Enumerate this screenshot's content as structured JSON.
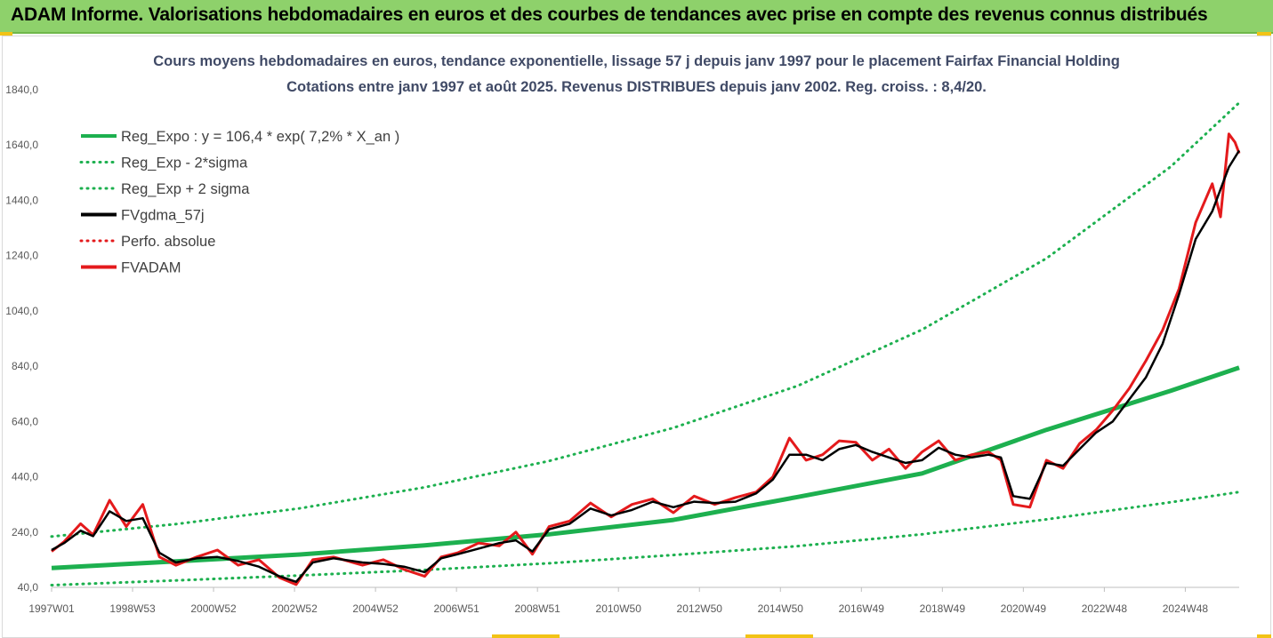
{
  "banner": {
    "title": "ADAM Informe. Valorisations hebdomadaires en euros et des courbes de tendances avec prise en compte des revenus connus distribués"
  },
  "colors": {
    "banner": "#8ed16b",
    "trend": "#1db04f",
    "smooth": "#000000",
    "price": "#e41a1c",
    "perfo": "#e41a1c",
    "title": "#404a66"
  },
  "chart_data": {
    "type": "line",
    "title": "Cours moyens hebdomadaires en euros, tendance exponentielle, lissage 57 j depuis janv 1997  pour le placement Fairfax Financial Holding",
    "subtitle": "Cotations entre janv 1997 et août 2025. Revenus DISTRIBUES depuis janv 2002. Reg. croiss. : 8,4/20.",
    "xlabel": "",
    "ylabel": "",
    "ylim": [
      40,
      1840
    ],
    "yticks": [
      "1840,0",
      "1640,0",
      "1440,0",
      "1240,0",
      "1040,0",
      "840,0",
      "640,0",
      "440,0",
      "240,0",
      "40,0"
    ],
    "x_tick_labels": [
      "1997W01",
      "1998W53",
      "2000W52",
      "2002W52",
      "2004W52",
      "2006W51",
      "2008W51",
      "2010W50",
      "2012W50",
      "2014W50",
      "2016W49",
      "2018W49",
      "2020W49",
      "2022W48",
      "2024W48"
    ],
    "x_range": [
      1997.0,
      2025.65
    ],
    "grid": false,
    "legend_position": "top-left",
    "legend": [
      {
        "label": "Reg_Expo : y = 106,4 * exp( 7,2% *  X_an )",
        "style": "solid",
        "color": "#1db04f"
      },
      {
        "label": "Reg_Exp - 2*sigma",
        "style": "dotted",
        "color": "#1db04f"
      },
      {
        "label": "Reg_Exp + 2 sigma",
        "style": "dotted",
        "color": "#1db04f"
      },
      {
        "label": "FVgdma_57j",
        "style": "solid",
        "color": "#000000"
      },
      {
        "label": "Perfo. absolue",
        "style": "dotted",
        "color": "#e41a1c"
      },
      {
        "label": "FVADAM",
        "style": "solid",
        "color": "#e41a1c"
      }
    ],
    "series": [
      {
        "name": "Reg_Expo : y = 106,4 * exp( 7,2% *  X_an )",
        "x": [
          1997.0,
          2000.0,
          2003.0,
          2006.0,
          2009.0,
          2012.0,
          2015.0,
          2018.0,
          2021.0,
          2024.0,
          2025.65
        ],
        "values": [
          110,
          134,
          159,
          192,
          232,
          284,
          367,
          452,
          610,
          751,
          835
        ]
      },
      {
        "name": "Reg_Exp - 2*sigma",
        "x": [
          1997.0,
          2000.0,
          2003.0,
          2006.0,
          2009.0,
          2012.0,
          2015.0,
          2018.0,
          2021.0,
          2024.0,
          2025.65
        ],
        "values": [
          48,
          65,
          83,
          103,
          127,
          157,
          189,
          232,
          286,
          348,
          385
        ]
      },
      {
        "name": "Reg_Exp + 2 sigma",
        "x": [
          1997.0,
          2000.0,
          2003.0,
          2006.0,
          2009.0,
          2012.0,
          2015.0,
          2018.0,
          2021.0,
          2024.0,
          2025.65
        ],
        "values": [
          224,
          269,
          326,
          402,
          497,
          617,
          769,
          972,
          1230,
          1562,
          1793
        ]
      },
      {
        "name": "FVgdma_57j",
        "x": [
          1997.0,
          1997.3,
          1997.7,
          1998.0,
          1998.4,
          1998.8,
          1999.2,
          1999.6,
          2000.0,
          2000.5,
          2001.0,
          2001.5,
          2002.0,
          2002.5,
          2002.9,
          2003.3,
          2003.8,
          2004.5,
          2005.0,
          2005.5,
          2006.0,
          2006.4,
          2006.8,
          2007.3,
          2007.8,
          2008.2,
          2008.6,
          2009.0,
          2009.5,
          2010.0,
          2010.5,
          2011.0,
          2011.5,
          2012.0,
          2012.5,
          2013.0,
          2013.5,
          2014.0,
          2014.4,
          2014.8,
          2015.2,
          2015.6,
          2016.0,
          2016.4,
          2016.8,
          2017.2,
          2017.6,
          2018.0,
          2018.4,
          2018.8,
          2019.2,
          2019.6,
          2019.9,
          2020.2,
          2020.6,
          2021.0,
          2021.4,
          2021.8,
          2022.2,
          2022.6,
          2023.0,
          2023.4,
          2023.8,
          2024.2,
          2024.6,
          2025.0,
          2025.4,
          2025.65
        ],
        "values": [
          175,
          200,
          245,
          225,
          315,
          280,
          290,
          165,
          130,
          145,
          150,
          135,
          115,
          80,
          60,
          130,
          145,
          130,
          125,
          115,
          95,
          145,
          160,
          180,
          200,
          210,
          170,
          250,
          270,
          325,
          300,
          320,
          350,
          330,
          350,
          345,
          350,
          380,
          430,
          520,
          520,
          500,
          540,
          555,
          530,
          510,
          490,
          500,
          545,
          520,
          510,
          520,
          510,
          370,
          360,
          490,
          480,
          540,
          600,
          640,
          720,
          800,
          920,
          1100,
          1300,
          1400,
          1560,
          1620
        ]
      },
      {
        "name": "FVADAM",
        "x": [
          1997.0,
          1997.3,
          1997.7,
          1998.0,
          1998.4,
          1998.8,
          1999.2,
          1999.6,
          2000.0,
          2000.5,
          2001.0,
          2001.5,
          2002.0,
          2002.5,
          2002.9,
          2003.3,
          2003.8,
          2004.5,
          2005.0,
          2005.5,
          2006.0,
          2006.4,
          2006.8,
          2007.3,
          2007.8,
          2008.2,
          2008.6,
          2009.0,
          2009.5,
          2010.0,
          2010.5,
          2011.0,
          2011.5,
          2012.0,
          2012.5,
          2013.0,
          2013.5,
          2014.0,
          2014.4,
          2014.8,
          2015.2,
          2015.6,
          2016.0,
          2016.4,
          2016.8,
          2017.2,
          2017.6,
          2018.0,
          2018.4,
          2018.8,
          2019.2,
          2019.6,
          2019.9,
          2020.2,
          2020.6,
          2021.0,
          2021.4,
          2021.8,
          2022.2,
          2022.6,
          2023.0,
          2023.4,
          2023.8,
          2024.2,
          2024.6,
          2025.0,
          2025.2,
          2025.4,
          2025.55,
          2025.65
        ],
        "values": [
          170,
          205,
          270,
          230,
          355,
          260,
          340,
          150,
          120,
          150,
          175,
          120,
          140,
          75,
          50,
          140,
          150,
          120,
          140,
          105,
          80,
          150,
          165,
          200,
          190,
          240,
          160,
          260,
          280,
          345,
          295,
          340,
          360,
          310,
          370,
          340,
          365,
          385,
          440,
          580,
          500,
          520,
          570,
          565,
          500,
          540,
          470,
          530,
          570,
          500,
          520,
          530,
          500,
          340,
          330,
          500,
          470,
          560,
          610,
          680,
          760,
          860,
          970,
          1120,
          1360,
          1500,
          1380,
          1680,
          1650,
          1610
        ]
      }
    ]
  }
}
